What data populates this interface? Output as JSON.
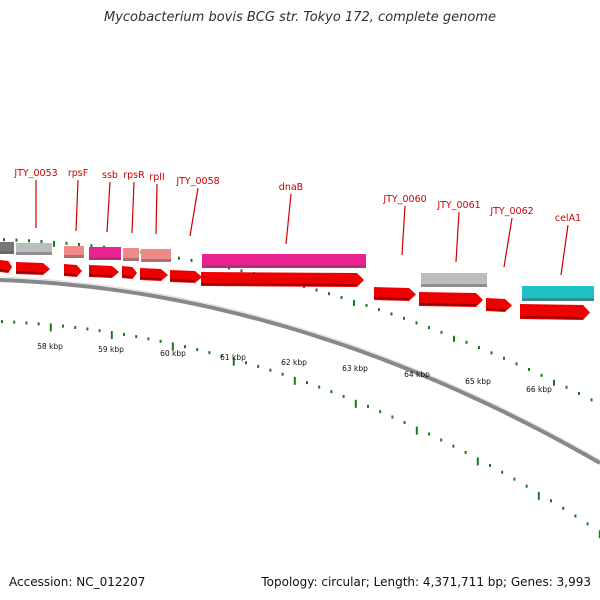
{
  "title": "Mycobacterium bovis BCG str. Tokyo 172, complete genome",
  "accession": "Accession: NC_012207",
  "summary": "Topology: circular; Length: 4,371,711 bp; Genes: 3,993",
  "colors": {
    "cds_arrow": "#ee0000",
    "gene_label": "#cc0000",
    "backbone": "#888888",
    "tick": "#1a7a1a",
    "magenta": "#e8228f",
    "pink": "#ef8a8a",
    "grey": "#bdbdbd",
    "dark_grey": "#777777",
    "cyan": "#20c0c8"
  },
  "scale_ticks": [
    "58 kbp",
    "59 kbp",
    "60 kbp",
    "61 kbp",
    "62 kbp",
    "63 kbp",
    "64 kbp",
    "65 kbp",
    "66 kbp"
  ],
  "gene_labels": [
    "JTY_0053",
    "rpsF",
    "ssb",
    "rpsR",
    "rplI",
    "JTY_0058",
    "dnaB",
    "JTY_0060",
    "JTY_0061",
    "JTY_0062",
    "celA1"
  ],
  "features": [
    {
      "color": "dark_grey"
    },
    {
      "color": "grey"
    },
    {
      "color": "pink"
    },
    {
      "color": "magenta"
    },
    {
      "color": "pink"
    },
    {
      "color": "pink"
    },
    {
      "color": "magenta"
    },
    {
      "color": "grey"
    },
    {
      "color": "cyan"
    }
  ]
}
